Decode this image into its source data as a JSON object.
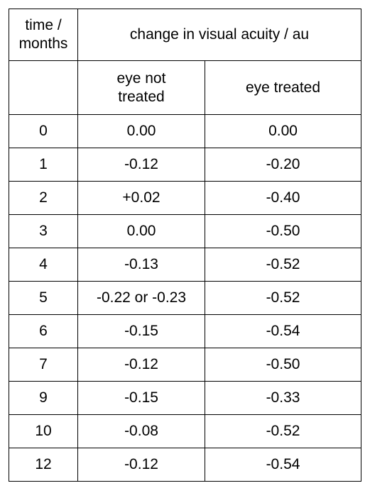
{
  "header": {
    "time_col": "time /\nmonths",
    "group_col": "change in visual acuity / au",
    "eye_not_treated": "eye not\ntreated",
    "eye_treated": "eye treated"
  },
  "rows": [
    {
      "time": "0",
      "not_treated": "0.00",
      "treated": "0.00"
    },
    {
      "time": "1",
      "not_treated": "-0.12",
      "treated": "-0.20"
    },
    {
      "time": "2",
      "not_treated": "+0.02",
      "treated": "-0.40"
    },
    {
      "time": "3",
      "not_treated": "0.00",
      "treated": "-0.50"
    },
    {
      "time": "4",
      "not_treated": "-0.13",
      "treated": "-0.52"
    },
    {
      "time": "5",
      "not_treated": "-0.22 or -0.23",
      "treated": "-0.52"
    },
    {
      "time": "6",
      "not_treated": "-0.15",
      "treated": "-0.54"
    },
    {
      "time": "7",
      "not_treated": "-0.12",
      "treated": "-0.50"
    },
    {
      "time": "9",
      "not_treated": "-0.15",
      "treated": "-0.33"
    },
    {
      "time": "10",
      "not_treated": "-0.08",
      "treated": "-0.52"
    },
    {
      "time": "12",
      "not_treated": "-0.12",
      "treated": "-0.54"
    }
  ]
}
